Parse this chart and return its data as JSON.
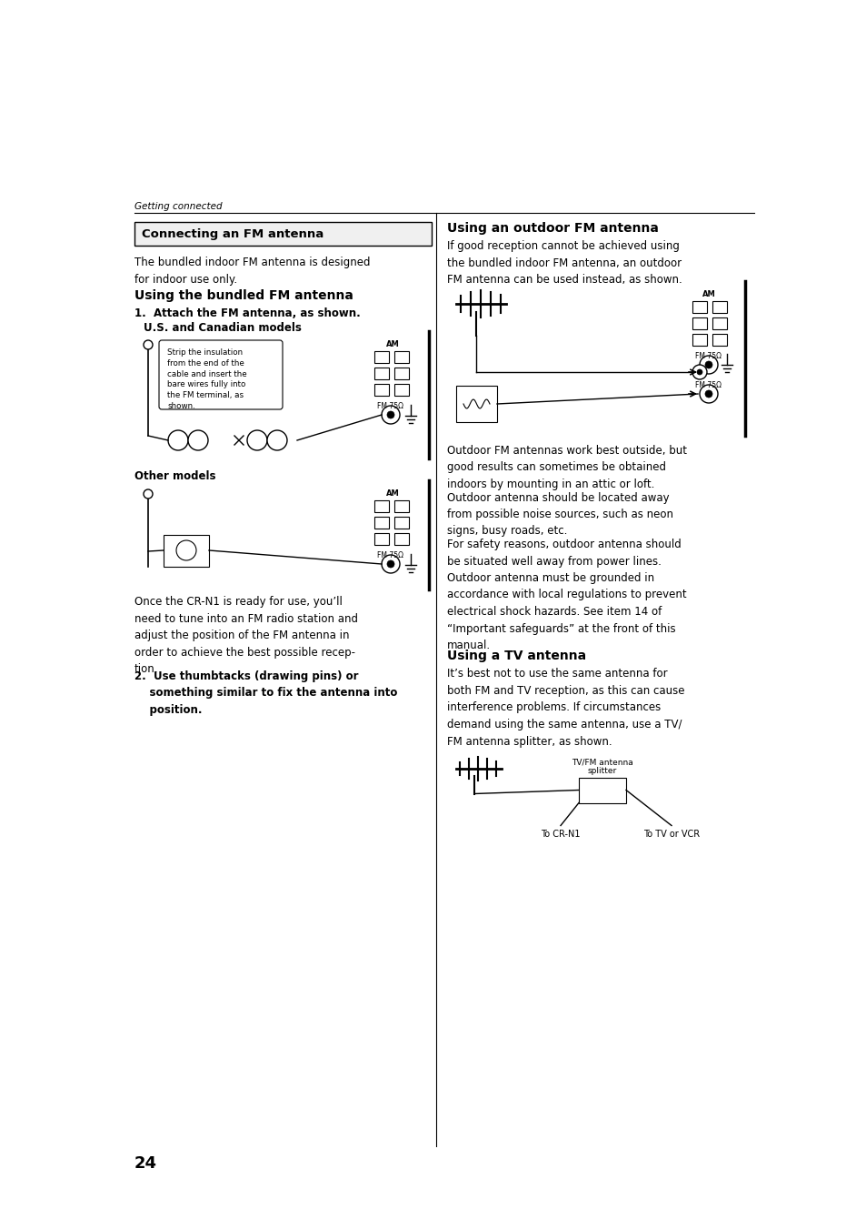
{
  "page_bg": "#ffffff",
  "page_number": "24",
  "header_italic": "Getting connected",
  "box_title": "Connecting an FM antenna",
  "intro_text": "The bundled indoor FM antenna is designed\nfor indoor use only.",
  "section1_title": "Using the bundled FM antenna",
  "step1_bold": "1.  Attach the FM antenna, as shown.",
  "us_models_bold": "U.S. and Canadian models",
  "callout_text": "Strip the insulation\nfrom the end of the\ncable and insert the\nbare wires fully into\nthe FM terminal, as\nshown.",
  "other_models_bold": "Other models",
  "para_after_other": "Once the CR-N1 is ready for use, you’ll\nneed to tune into an FM radio station and\nadjust the position of the FM antenna in\norder to achieve the best possible recep-\ntion.",
  "step2_text_bold": "2.  Use thumbtacks (drawing pins) or\n    something similar to fix the antenna into\n    position.",
  "right_section_title": "Using an outdoor FM antenna",
  "right_intro": "If good reception cannot be achieved using\nthe bundled indoor FM antenna, an outdoor\nFM antenna can be used instead, as shown.",
  "outdoor_para1": "Outdoor FM antennas work best outside, but\ngood results can sometimes be obtained\nindoors by mounting in an attic or loft.",
  "outdoor_para2": "Outdoor antenna should be located away\nfrom possible noise sources, such as neon\nsigns, busy roads, etc.",
  "outdoor_para3": "For safety reasons, outdoor antenna should\nbe situated well away from power lines.",
  "outdoor_para4": "Outdoor antenna must be grounded in\naccordance with local regulations to prevent\nelectrical shock hazards. See item 14 of\n“Important safeguards” at the front of this\nmanual.",
  "tv_antenna_title": "Using a TV antenna",
  "tv_para": "It’s best not to use the same antenna for\nboth FM and TV reception, as this can cause\ninterference problems. If circumstances\ndemand using the same antenna, use a TV/\nFM antenna splitter, as shown.",
  "tv_label1": "TV/FM antenna\nsplitter",
  "tv_label2": "To CR-N1",
  "tv_label3": "To TV or VCR"
}
